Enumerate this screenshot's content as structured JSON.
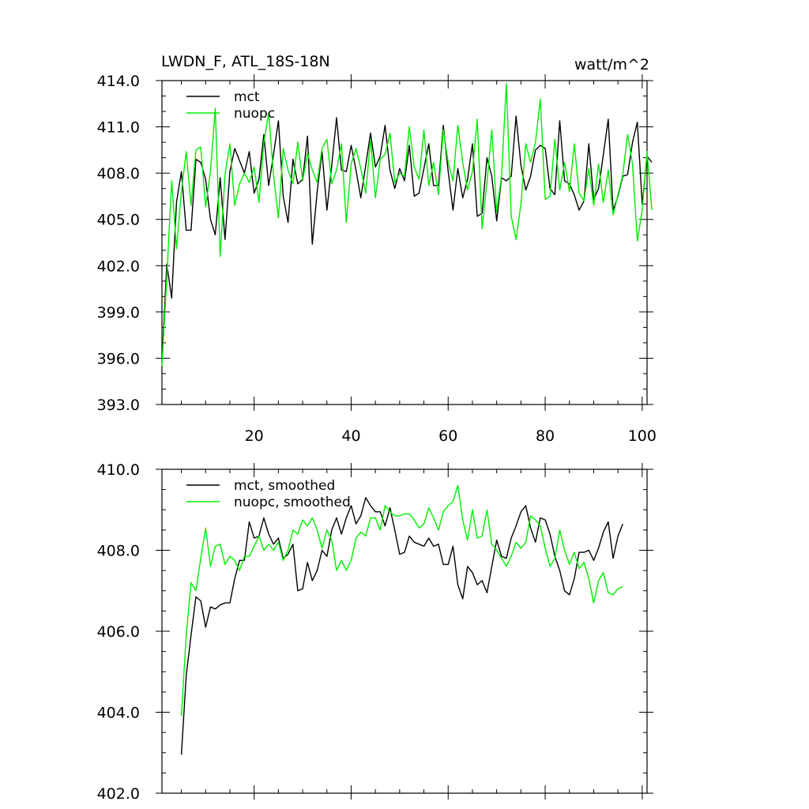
{
  "chart_data": [
    {
      "type": "line",
      "title": "LWDN_F, ATL_18S-18N",
      "units": "watt/m^2",
      "xlim": [
        1,
        101
      ],
      "ylim": [
        393.0,
        414.0
      ],
      "x_ticks": [
        20,
        40,
        60,
        80,
        100
      ],
      "x_tick_labels": [
        "20",
        "40",
        "60",
        "80",
        "100"
      ],
      "y_ticks": [
        393.0,
        396.0,
        399.0,
        402.0,
        405.0,
        408.0,
        411.0,
        414.0
      ],
      "y_tick_labels": [
        "393.0",
        "396.0",
        "399.0",
        "402.0",
        "405.0",
        "408.0",
        "411.0",
        "414.0"
      ],
      "legend": "top-left",
      "grid": false,
      "series": [
        {
          "name": "mct",
          "color": "#000000",
          "x_start": 1,
          "values": [
            395.7,
            402.1,
            399.9,
            406.1,
            408.1,
            404.3,
            404.3,
            408.9,
            408.7,
            407.6,
            405.0,
            404.0,
            407.7,
            403.7,
            408.1,
            409.6,
            408.8,
            408.0,
            409.4,
            406.7,
            407.6,
            410.5,
            407.2,
            409.2,
            411.4,
            406.5,
            404.8,
            408.9,
            407.3,
            407.6,
            410.4,
            403.4,
            406.8,
            409.4,
            405.6,
            408.5,
            411.6,
            408.2,
            408.1,
            409.8,
            408.2,
            406.4,
            408.5,
            410.6,
            408.4,
            409.1,
            411.1,
            408.2,
            407.0,
            408.3,
            407.5,
            409.8,
            406.5,
            406.7,
            408.3,
            409.9,
            407.2,
            407.2,
            411.1,
            408.1,
            405.6,
            408.3,
            406.4,
            407.6,
            409.9,
            405.2,
            405.4,
            409.0,
            407.8,
            404.9,
            407.7,
            407.5,
            407.8,
            411.7,
            408.5,
            406.9,
            407.8,
            409.5,
            409.8,
            409.6,
            407.0,
            406.6,
            411.4,
            407.5,
            407.3,
            406.6,
            405.6,
            406.2,
            409.9,
            406.3,
            407.0,
            409.2,
            411.5,
            405.6,
            406.5,
            407.8,
            407.9,
            410.0,
            411.3,
            406.0,
            409.1,
            408.7
          ]
        },
        {
          "name": "nuopc",
          "color": "#00ee00",
          "x_start": 1,
          "values": [
            395.5,
            401.2,
            407.5,
            403.1,
            406.8,
            409.4,
            405.9,
            409.5,
            409.7,
            405.8,
            408.1,
            412.2,
            402.6,
            407.9,
            409.9,
            405.9,
            407.3,
            408.0,
            407.4,
            408.4,
            406.1,
            410.0,
            411.9,
            407.9,
            405.1,
            409.6,
            408.2,
            407.3,
            410.0,
            407.5,
            409.3,
            408.2,
            407.4,
            409.6,
            410.2,
            407.3,
            408.2,
            409.9,
            404.8,
            408.6,
            409.6,
            408.3,
            406.7,
            410.2,
            406.4,
            408.9,
            409.2,
            410.6,
            407.4,
            408.0,
            407.8,
            411.0,
            408.4,
            407.6,
            410.8,
            407.2,
            408.7,
            406.6,
            410.8,
            408.7,
            407.5,
            411.1,
            408.7,
            406.9,
            408.1,
            411.5,
            404.4,
            407.4,
            410.8,
            405.5,
            407.8,
            413.8,
            405.2,
            403.7,
            406.0,
            409.9,
            408.7,
            410.0,
            412.8,
            406.3,
            406.5,
            410.2,
            406.9,
            408.7,
            406.8,
            409.9,
            406.7,
            406.2,
            408.3,
            405.9,
            408.6,
            406.1,
            408.2,
            405.3,
            406.6,
            407.9,
            410.5,
            408.6,
            403.6,
            405.6,
            409.4,
            405.6
          ]
        }
      ]
    },
    {
      "type": "line",
      "title": "",
      "xlim": [
        1,
        101
      ],
      "ylim": [
        402.0,
        410.0
      ],
      "x_ticks": [
        20,
        40,
        60,
        80,
        100
      ],
      "y_ticks": [
        402.0,
        404.0,
        406.0,
        408.0,
        410.0
      ],
      "y_tick_labels": [
        "402.0",
        "404.0",
        "406.0",
        "408.0",
        "410.0"
      ],
      "legend": "top-left",
      "grid": false,
      "series": [
        {
          "name": "mct, smoothed",
          "color": "#000000",
          "x_start": 5,
          "values": [
            402.95,
            404.9,
            405.9,
            406.85,
            406.75,
            406.1,
            406.6,
            406.55,
            406.65,
            406.7,
            406.7,
            407.3,
            407.75,
            407.75,
            408.7,
            408.3,
            408.35,
            408.8,
            408.4,
            408.15,
            408.3,
            407.8,
            407.9,
            408.15,
            407.0,
            407.05,
            407.7,
            407.25,
            407.5,
            408.0,
            407.85,
            408.5,
            408.8,
            408.4,
            408.8,
            409.1,
            408.65,
            408.85,
            409.3,
            409.1,
            408.95,
            408.95,
            408.6,
            409.05,
            408.5,
            407.9,
            407.95,
            408.35,
            408.2,
            408.15,
            408.1,
            408.3,
            408.1,
            408.15,
            407.65,
            407.65,
            408.1,
            407.15,
            406.8,
            407.6,
            407.45,
            407.15,
            407.25,
            406.95,
            407.6,
            408.25,
            407.85,
            407.8,
            408.3,
            408.6,
            408.95,
            409.1,
            408.55,
            408.2,
            408.8,
            408.75,
            408.4,
            407.85,
            407.5,
            407.0,
            406.9,
            407.3,
            407.95,
            407.95,
            408.0,
            407.75,
            408.05,
            408.45,
            408.7,
            407.8,
            408.35,
            408.65
          ]
        },
        {
          "name": "nuopc, smoothed",
          "color": "#00ee00",
          "x_start": 5,
          "values": [
            403.9,
            405.9,
            407.2,
            407.0,
            407.8,
            408.55,
            407.6,
            408.1,
            408.15,
            407.65,
            407.85,
            407.75,
            407.5,
            407.85,
            407.85,
            408.1,
            408.35,
            408.0,
            408.15,
            408.0,
            408.2,
            407.75,
            408.0,
            408.5,
            408.4,
            408.75,
            408.6,
            408.8,
            408.5,
            408.05,
            408.5,
            408.25,
            407.5,
            407.75,
            407.5,
            407.75,
            408.3,
            408.45,
            408.35,
            408.8,
            408.8,
            408.5,
            409.1,
            408.95,
            408.85,
            408.85,
            408.9,
            408.9,
            408.75,
            408.55,
            408.65,
            409.05,
            408.8,
            408.5,
            408.95,
            409.1,
            409.2,
            409.6,
            408.75,
            408.25,
            409.0,
            408.3,
            408.35,
            409.0,
            408.15,
            408.0,
            407.8,
            407.6,
            407.85,
            408.2,
            408.05,
            408.2,
            408.85,
            408.75,
            408.6,
            408.05,
            407.6,
            407.8,
            408.5,
            408.0,
            407.65,
            407.95,
            407.55,
            407.7,
            407.3,
            406.7,
            407.25,
            407.45,
            406.95,
            406.9,
            407.05,
            407.1
          ]
        }
      ]
    }
  ]
}
